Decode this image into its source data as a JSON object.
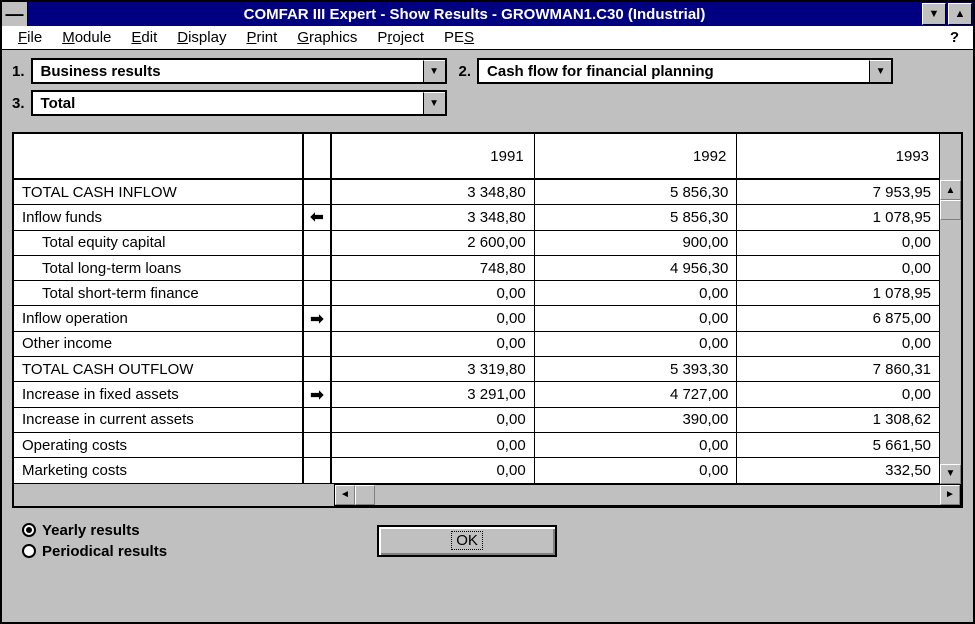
{
  "window": {
    "title": "COMFAR III Expert - Show Results - GROWMAN1.C30 (Industrial)"
  },
  "menu": {
    "items": [
      "File",
      "Module",
      "Edit",
      "Display",
      "Print",
      "Graphics",
      "Project",
      "PES"
    ],
    "help": "?"
  },
  "selectors": {
    "s1": {
      "num": "1.",
      "value": "Business results"
    },
    "s2": {
      "num": "2.",
      "value": "Cash flow for financial planning"
    },
    "s3": {
      "num": "3.",
      "value": "Total"
    }
  },
  "table": {
    "years": [
      "1991",
      "1992",
      "1993"
    ],
    "rows": [
      {
        "label": "TOTAL CASH INFLOW",
        "indent": 0,
        "arrow": "",
        "vals": [
          "3 348,80",
          "5 856,30",
          "7 953,95"
        ]
      },
      {
        "label": "Inflow funds",
        "indent": 0,
        "arrow": "left",
        "vals": [
          "3 348,80",
          "5 856,30",
          "1 078,95"
        ]
      },
      {
        "label": "Total equity capital",
        "indent": 2,
        "arrow": "",
        "vals": [
          "2 600,00",
          "900,00",
          "0,00"
        ]
      },
      {
        "label": "Total long-term loans",
        "indent": 2,
        "arrow": "",
        "vals": [
          "748,80",
          "4 956,30",
          "0,00"
        ]
      },
      {
        "label": "Total short-term finance",
        "indent": 2,
        "arrow": "",
        "vals": [
          "0,00",
          "0,00",
          "1 078,95"
        ]
      },
      {
        "label": "Inflow operation",
        "indent": 0,
        "arrow": "right",
        "vals": [
          "0,00",
          "0,00",
          "6 875,00"
        ]
      },
      {
        "label": "Other income",
        "indent": 0,
        "arrow": "",
        "vals": [
          "0,00",
          "0,00",
          "0,00"
        ]
      },
      {
        "label": "TOTAL CASH OUTFLOW",
        "indent": 0,
        "arrow": "",
        "vals": [
          "3 319,80",
          "5 393,30",
          "7 860,31"
        ]
      },
      {
        "label": "Increase in fixed assets",
        "indent": 0,
        "arrow": "right",
        "vals": [
          "3 291,00",
          "4 727,00",
          "0,00"
        ]
      },
      {
        "label": "Increase in current assets",
        "indent": 0,
        "arrow": "",
        "vals": [
          "0,00",
          "390,00",
          "1 308,62"
        ]
      },
      {
        "label": "Operating costs",
        "indent": 0,
        "arrow": "",
        "vals": [
          "0,00",
          "0,00",
          "5 661,50"
        ]
      },
      {
        "label": "Marketing costs",
        "indent": 0,
        "arrow": "",
        "vals": [
          "0,00",
          "0,00",
          "332,50"
        ]
      }
    ]
  },
  "radios": {
    "yearly": "Yearly results",
    "periodical": "Periodical results",
    "selected": "yearly"
  },
  "buttons": {
    "ok": "OK"
  },
  "colors": {
    "titlebar_bg": "#000080",
    "titlebar_fg": "#ffffff",
    "chrome_bg": "#c0c0c0",
    "border": "#000000",
    "content_bg": "#ffffff"
  }
}
